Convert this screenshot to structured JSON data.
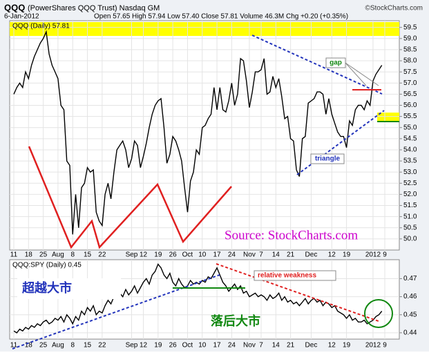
{
  "header": {
    "symbol": "QQQ",
    "name": "(PowerShares QQQ Trust) Nasdaq GM",
    "date": "6-Jan-2012",
    "quote": "Open 57.65  High 57.94  Low 57.40  Close 57.81  Volume 46.3M  Chg +0.20 (+0.35%)",
    "credit": "©StockCharts.com"
  },
  "chart_data": [
    {
      "type": "line",
      "categories": [
        "11",
        null,
        null,
        null,
        null,
        "18",
        null,
        null,
        null,
        null,
        "25",
        null,
        null,
        null,
        null,
        "Aug",
        null,
        null,
        null,
        null,
        "8",
        null,
        null,
        null,
        null,
        "15",
        null,
        null,
        null,
        null,
        "22",
        null,
        null,
        null,
        null,
        null,
        null,
        null,
        null,
        null,
        "Sep",
        null,
        null,
        null,
        "12",
        null,
        null,
        null,
        null,
        "19",
        null,
        null,
        null,
        null,
        "26",
        null,
        null,
        null,
        null,
        "Oct",
        null,
        null,
        null,
        null,
        "10",
        null,
        null,
        null,
        null,
        "17",
        null,
        null,
        null,
        null,
        "24",
        null,
        null,
        null,
        null,
        null,
        "Nov",
        null,
        null,
        null,
        "7",
        null,
        null,
        null,
        null,
        "14",
        null,
        null,
        null,
        null,
        "21",
        null,
        null,
        null,
        null,
        null,
        null,
        "Dec",
        null,
        null,
        null,
        null,
        null,
        null,
        "12",
        null,
        null,
        null,
        null,
        "19",
        null,
        null,
        null,
        null,
        null,
        null,
        null,
        null,
        "2012",
        null,
        null,
        null,
        "9"
      ],
      "series": [
        {
          "name": "QQQ (Daily) 57.81",
          "color": "#000000",
          "values": [
            56.5,
            56.8,
            57.0,
            56.8,
            57.5,
            57.2,
            57.8,
            58.2,
            58.5,
            58.8,
            59.0,
            59.3,
            58.3,
            57.8,
            57.5,
            57.2,
            56.0,
            55.8,
            53.5,
            53.3,
            50.2,
            52.0,
            50.5,
            52.3,
            52.5,
            53.2,
            53.0,
            53.1,
            51.2,
            50.8,
            50.6,
            52.0,
            52.5,
            51.8,
            53.0,
            54.0,
            54.2,
            54.4,
            54.0,
            53.2,
            53.6,
            54.4,
            54.2,
            53.2,
            53.7,
            54.3,
            55.0,
            55.6,
            56.0,
            56.2,
            56.3,
            55.0,
            53.4,
            53.8,
            54.6,
            54.4,
            54.0,
            53.5,
            52.3,
            51.2,
            52.6,
            53.0,
            54.0,
            53.8,
            55.0,
            55.1,
            55.4,
            55.6,
            56.8,
            55.8,
            56.8,
            55.8,
            55.7,
            56.2,
            57.0,
            56.0,
            56.5,
            58.1,
            58.0,
            57.1,
            55.9,
            56.6,
            57.5,
            57.5,
            57.6,
            58.1,
            56.5,
            56.6,
            57.3,
            56.8,
            57.2,
            56.4,
            55.4,
            55.5,
            54.5,
            54.4,
            53.1,
            52.8,
            54.5,
            54.6,
            56.1,
            56.2,
            56.3,
            56.6,
            56.6,
            56.5,
            55.6,
            56.3,
            55.6,
            55.2,
            54.8,
            54.6,
            54.6,
            54.1,
            55.3,
            55.1,
            55.8,
            56.0,
            56.0,
            55.8,
            56.2,
            56.0,
            57.1,
            57.4,
            57.6,
            57.8,
            null
          ]
        }
      ],
      "ylim": [
        49.5,
        59.8
      ],
      "yticks": [
        {
          "value": 50,
          "label": "50.0"
        },
        50.5,
        {
          "value": 51,
          "label": "51.0"
        },
        51.5,
        {
          "value": 52,
          "label": "52.0"
        },
        52.5,
        {
          "value": 53,
          "label": "53.0"
        },
        53.5,
        {
          "value": 54,
          "label": "54.0"
        },
        54.5,
        {
          "value": 55,
          "label": "55.0"
        },
        55.5,
        {
          "value": 56,
          "label": "56.0"
        },
        56.5,
        {
          "value": 57,
          "label": "57.0"
        },
        57.5,
        {
          "value": 58,
          "label": "58.0"
        },
        58.5,
        {
          "value": 59,
          "label": "59.0"
        },
        59.5
      ],
      "grid": true,
      "annotations": [
        "gap",
        "triangle",
        "Source: StockCharts.com"
      ]
    },
    {
      "type": "line",
      "categories": [
        "11",
        null,
        null,
        null,
        null,
        "18",
        null,
        null,
        null,
        null,
        "25",
        null,
        null,
        null,
        null,
        "Aug",
        null,
        null,
        null,
        null,
        "8",
        null,
        null,
        null,
        null,
        "15",
        null,
        null,
        null,
        null,
        "22",
        null,
        null,
        null,
        null,
        null,
        null,
        null,
        null,
        null,
        "Sep",
        null,
        null,
        null,
        "12",
        null,
        null,
        null,
        null,
        "19",
        null,
        null,
        null,
        null,
        "26",
        null,
        null,
        null,
        null,
        "Oct",
        null,
        null,
        null,
        null,
        "10",
        null,
        null,
        null,
        null,
        "17",
        null,
        null,
        null,
        null,
        "24",
        null,
        null,
        null,
        null,
        null,
        "Nov",
        null,
        null,
        null,
        "7",
        null,
        null,
        null,
        null,
        "14",
        null,
        null,
        null,
        null,
        "21",
        null,
        null,
        null,
        null,
        null,
        null,
        "Dec",
        null,
        null,
        null,
        null,
        null,
        null,
        "12",
        null,
        null,
        null,
        null,
        "19",
        null,
        null,
        null,
        null,
        null,
        null,
        null,
        null,
        "2012",
        null,
        null,
        null,
        "9"
      ],
      "series": [
        {
          "name": "QQQ:SPY (Daily) 0.45",
          "color": "#000000",
          "values": [
            0.441,
            0.44,
            0.442,
            0.441,
            0.443,
            0.442,
            0.444,
            0.443,
            0.445,
            0.444,
            0.446,
            0.447,
            0.445,
            0.446,
            0.448,
            0.447,
            0.449,
            0.446,
            0.45,
            0.448,
            0.445,
            0.449,
            0.447,
            0.452,
            0.45,
            0.454,
            0.452,
            0.455,
            0.45,
            0.452,
            0.451,
            0.455,
            0.458,
            0.456,
            0.46,
            0.459,
            0.462,
            0.46,
            0.464,
            0.461,
            0.463,
            0.466,
            0.462,
            0.465,
            0.468,
            0.47,
            0.467,
            0.472,
            0.474,
            0.478,
            0.476,
            0.472,
            0.47,
            0.473,
            0.468,
            0.466,
            0.47,
            0.467,
            0.465,
            0.466,
            0.469,
            0.467,
            0.468,
            0.467,
            0.469,
            0.468,
            0.471,
            0.47,
            0.473,
            0.476,
            0.472,
            0.468,
            0.466,
            0.463,
            0.465,
            0.467,
            0.464,
            0.466,
            0.462,
            0.463,
            0.46,
            0.461,
            0.462,
            0.46,
            0.461,
            0.46,
            0.458,
            0.461,
            0.459,
            0.46,
            0.462,
            0.458,
            0.46,
            0.457,
            0.458,
            0.456,
            0.457,
            0.455,
            0.457,
            0.459,
            0.456,
            0.458,
            0.459,
            0.457,
            0.458,
            0.455,
            0.457,
            0.456,
            0.454,
            0.455,
            0.452,
            0.451,
            0.45,
            0.448,
            0.45,
            0.447,
            0.448,
            0.446,
            0.446,
            0.447,
            0.445,
            0.446,
            0.447,
            0.449,
            0.45,
            0.452,
            null
          ]
        }
      ],
      "ylim": [
        0.4365,
        0.4805
      ],
      "yticks": [
        0.44,
        0.45,
        0.46,
        0.47
      ],
      "grid": true,
      "annotations": [
        "relative weakness",
        "超越大市",
        "落后大市"
      ]
    }
  ]
}
